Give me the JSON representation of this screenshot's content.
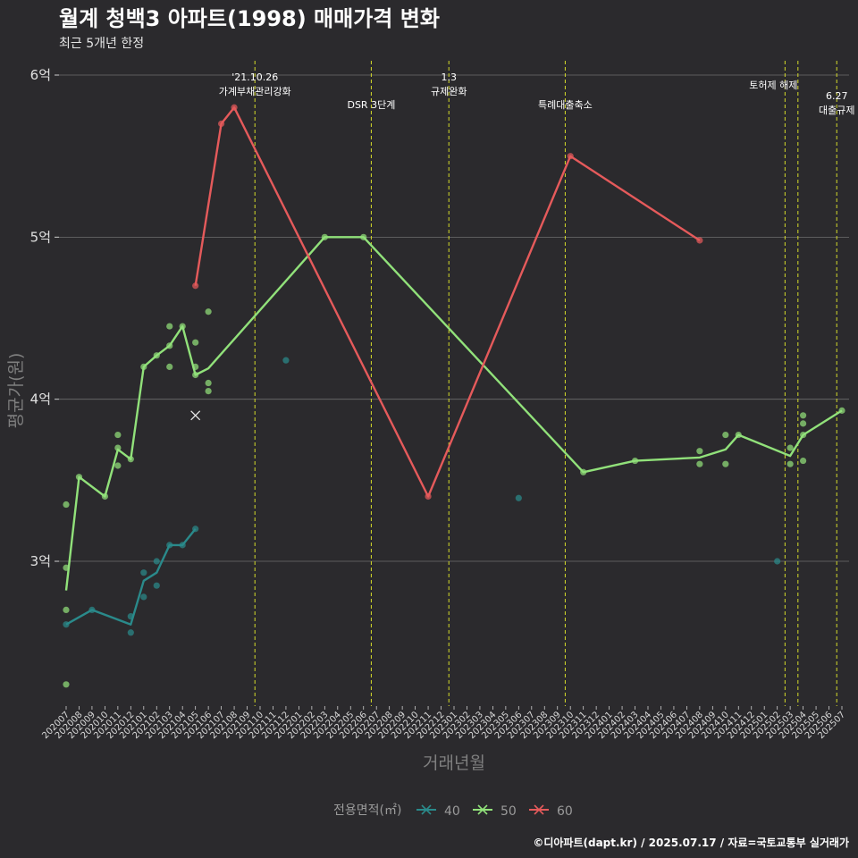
{
  "chart_data": {
    "type": "line",
    "title": "월계 청백3 아파트(1998) 매매가격 변화",
    "subtitle": "최근 5개년 한정",
    "xlabel": "거래년월",
    "ylabel": "평균가(원)",
    "caption": "©디아파트(dapt.kr) / 2025.07.17 / 자료=국토교통부 실거래가",
    "legend": {
      "title": "전용면적(㎡)",
      "position": "bottom"
    },
    "y_ticks": [
      {
        "value": 3,
        "label": "3억"
      },
      {
        "value": 4,
        "label": "4억"
      },
      {
        "value": 5,
        "label": "5억"
      },
      {
        "value": 6,
        "label": "6억"
      }
    ],
    "ylim": [
      2.1,
      6.1
    ],
    "categories": [
      "202007",
      "202008",
      "202009",
      "202010",
      "202011",
      "202012",
      "202101",
      "202102",
      "202103",
      "202104",
      "202105",
      "202106",
      "202107",
      "202108",
      "202109",
      "202110",
      "202111",
      "202112",
      "202201",
      "202202",
      "202203",
      "202204",
      "202205",
      "202206",
      "202207",
      "202208",
      "202209",
      "202210",
      "202211",
      "202212",
      "202301",
      "202302",
      "202303",
      "202304",
      "202305",
      "202306",
      "202307",
      "202308",
      "202309",
      "202310",
      "202311",
      "202312",
      "202401",
      "202402",
      "202403",
      "202404",
      "202405",
      "202406",
      "202407",
      "202408",
      "202409",
      "202410",
      "202411",
      "202412",
      "202501",
      "202502",
      "202503",
      "202504",
      "202505",
      "202506",
      "202507"
    ],
    "events": [
      {
        "x": 14.6,
        "label": "'21.10.26\n가계부채관리강화"
      },
      {
        "x": 23.6,
        "label": "DSR 3단계"
      },
      {
        "x": 29.6,
        "label": "1.3\n규제완화"
      },
      {
        "x": 38.6,
        "label": "특례대출축소"
      },
      {
        "x": 55.6,
        "label": "토허제 해제"
      },
      {
        "x": 56.6,
        "label": ""
      },
      {
        "x": 59.6,
        "label": "6.27\n대출규제"
      }
    ],
    "series": [
      {
        "name": "40",
        "color": "#2a8a8b",
        "line": [
          [
            0,
            2.61
          ],
          [
            2,
            2.7
          ],
          [
            5,
            2.61
          ],
          [
            6,
            2.88
          ],
          [
            7,
            2.93
          ],
          [
            8,
            3.1
          ],
          [
            9,
            3.1
          ],
          [
            10,
            3.2
          ]
        ],
        "points": [
          [
            0,
            2.61
          ],
          [
            2,
            2.7
          ],
          [
            5,
            2.66
          ],
          [
            5,
            2.56
          ],
          [
            6,
            2.93
          ],
          [
            6,
            2.78
          ],
          [
            7,
            2.85
          ],
          [
            7,
            3.0
          ],
          [
            8,
            3.1
          ],
          [
            9,
            3.1
          ],
          [
            10,
            3.2
          ],
          [
            17,
            4.24
          ],
          [
            35,
            3.39
          ],
          [
            55,
            3.0
          ]
        ]
      },
      {
        "name": "50",
        "color": "#91e17a",
        "line": [
          [
            0,
            2.82
          ],
          [
            1,
            3.52
          ],
          [
            3,
            3.4
          ],
          [
            4,
            3.69
          ],
          [
            5,
            3.63
          ],
          [
            6,
            4.2
          ],
          [
            7,
            4.27
          ],
          [
            8,
            4.33
          ],
          [
            9,
            4.45
          ],
          [
            10,
            4.15
          ],
          [
            11,
            4.19
          ],
          [
            20,
            5.0
          ],
          [
            23,
            5.0
          ],
          [
            40,
            3.55
          ],
          [
            44,
            3.62
          ],
          [
            49,
            3.64
          ],
          [
            51,
            3.69
          ],
          [
            52,
            3.78
          ],
          [
            56,
            3.65
          ],
          [
            57,
            3.78
          ],
          [
            60,
            3.93
          ]
        ],
        "points": [
          [
            0,
            3.35
          ],
          [
            0,
            2.96
          ],
          [
            0,
            2.7
          ],
          [
            0,
            2.24
          ],
          [
            1,
            3.52
          ],
          [
            3,
            3.4
          ],
          [
            4,
            3.78
          ],
          [
            4,
            3.7
          ],
          [
            4,
            3.59
          ],
          [
            5,
            3.63
          ],
          [
            6,
            4.2
          ],
          [
            7,
            4.27
          ],
          [
            8,
            4.45
          ],
          [
            8,
            4.33
          ],
          [
            8,
            4.2
          ],
          [
            9,
            4.45
          ],
          [
            10,
            4.35
          ],
          [
            10,
            4.2
          ],
          [
            10,
            4.15
          ],
          [
            11,
            4.54
          ],
          [
            11,
            4.1
          ],
          [
            11,
            4.05
          ],
          [
            20,
            5.0
          ],
          [
            23,
            5.0
          ],
          [
            40,
            3.55
          ],
          [
            44,
            3.62
          ],
          [
            49,
            3.68
          ],
          [
            49,
            3.6
          ],
          [
            51,
            3.78
          ],
          [
            51,
            3.6
          ],
          [
            52,
            3.78
          ],
          [
            56,
            3.7
          ],
          [
            56,
            3.6
          ],
          [
            57,
            3.9
          ],
          [
            57,
            3.85
          ],
          [
            57,
            3.78
          ],
          [
            57,
            3.62
          ],
          [
            60,
            3.93
          ]
        ],
        "crosses": [
          [
            10,
            3.9
          ]
        ]
      },
      {
        "name": "60",
        "color": "#e55a5b",
        "line": [
          [
            10,
            4.7
          ],
          [
            12,
            5.7
          ],
          [
            13,
            5.8
          ],
          [
            28,
            3.4
          ],
          [
            39,
            5.5
          ],
          [
            49,
            4.98
          ]
        ],
        "points": [
          [
            10,
            4.7
          ],
          [
            12,
            5.7
          ],
          [
            13,
            5.8
          ],
          [
            28,
            3.4
          ],
          [
            39,
            5.5
          ],
          [
            49,
            4.98
          ]
        ]
      }
    ]
  }
}
